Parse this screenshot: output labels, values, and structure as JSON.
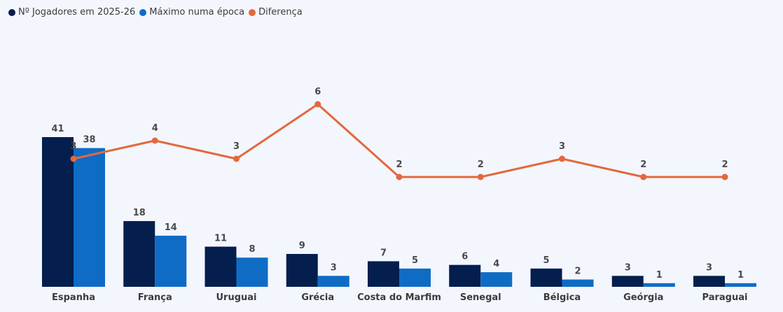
{
  "chart_data": {
    "type": "bar",
    "categories": [
      "Espanha",
      "França",
      "Uruguai",
      "Grécia",
      "Costa do Marfim",
      "Senegal",
      "Bélgica",
      "Geórgia",
      "Paraguai"
    ],
    "series": [
      {
        "name": "Nº Jogadores em 2025-26",
        "type": "bar",
        "color": "#041e4e",
        "values": [
          41,
          18,
          11,
          9,
          7,
          6,
          5,
          3,
          3
        ]
      },
      {
        "name": "Máximo numa época",
        "type": "bar",
        "color": "#0f6cc4",
        "values": [
          38,
          14,
          8,
          3,
          5,
          4,
          2,
          1,
          1
        ]
      },
      {
        "name": "Diferença",
        "type": "line",
        "color": "#e3683e",
        "values": [
          3,
          4,
          3,
          6,
          2,
          2,
          3,
          2,
          2
        ]
      }
    ],
    "legend_position": "top-left",
    "grid": false,
    "title": "",
    "xlabel": "",
    "ylabel": ""
  }
}
